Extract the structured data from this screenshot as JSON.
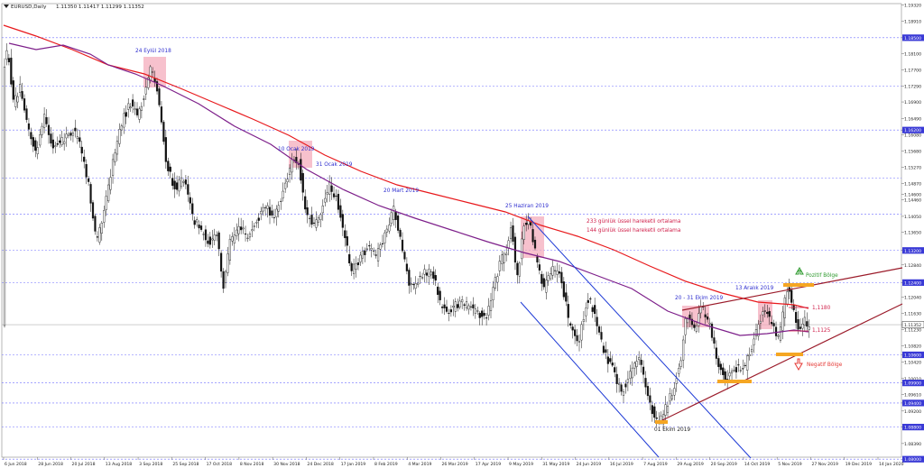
{
  "chart_data": {
    "type": "candlestick",
    "header": {
      "symbol": "EURUSD,Daily",
      "ohlc": "1.11350 1.11417 1.11299 1.11352"
    },
    "y_axis": {
      "range": [
        1.0805,
        1.1935
      ],
      "ticks": [
        "1.19320",
        "1.18910",
        "1.18500",
        "1.18100",
        "1.17700",
        "1.17290",
        "1.16900",
        "1.16490",
        "1.16200",
        "1.16080",
        "1.15680",
        "1.15270",
        "1.14870",
        "1.14600",
        "1.14460",
        "1.14050",
        "1.13650",
        "1.13200",
        "1.12840",
        "1.12400",
        "1.12040",
        "1.11630",
        "1.11352",
        "1.11230",
        "1.10820",
        "1.10600",
        "1.10420",
        "1.10010",
        "1.09900",
        "1.09610",
        "1.09400",
        "1.09200",
        "1.08800",
        "1.08390",
        "1.08000"
      ],
      "highlighted_levels": [
        "1.18500",
        "1.17300",
        "1.16200",
        "1.15000",
        "1.14100",
        "1.13200",
        "1.12400",
        "1.11352",
        "1.10600",
        "1.09900",
        "1.09400",
        "1.08800",
        "1.08000"
      ],
      "current_price": "1.11352"
    },
    "x_axis": {
      "ticks": [
        "6 Jun 2018",
        "28 Jun 2018",
        "20 Jul 2018",
        "13 Aug 2018",
        "3 Sep 2018",
        "25 Sep 2018",
        "17 Oct 2018",
        "8 Nov 2018",
        "30 Nov 2018",
        "24 Dec 2018",
        "17 Jan 2019",
        "8 Feb 2019",
        "4 Mar 2019",
        "26 Mar 2019",
        "17 Apr 2019",
        "9 May 2019",
        "31 May 2019",
        "24 Jun 2019",
        "16 Jul 2019",
        "7 Aug 2019",
        "29 Aug 2019",
        "20 Sep 2019",
        "14 Oct 2019",
        "5 Nov 2019",
        "27 Nov 2019",
        "19 Dec 2019",
        "14 Jan 2020"
      ]
    },
    "moving_averages": [
      {
        "name": "233 günlük üssel hareketli ortalama",
        "color": "#e8191c"
      },
      {
        "name": "144 günlük üssel hareketli ortalama",
        "color": "#7d1f8a"
      }
    ],
    "annotations": [
      "24 Eylül 2018",
      "10 Ocak 2019",
      "31 Ocak 2019",
      "20 Mart 2019",
      "25 Haziran 2019",
      "20 - 31 Ekim 2019",
      "13 Aralık 2019",
      "01 Ekim 2019",
      "1,1180",
      "1,1125",
      "Pozitif Bölge",
      "Negatif Bölge"
    ],
    "colors": {
      "candles": "#111111",
      "grid": "#6f6fff",
      "annotation_text": "#2e2ecf",
      "ma_text": "#d0204a",
      "highlight_box": "#f4a6b8",
      "support_bar": "#f5a623",
      "positive": "#2e9a2e",
      "negative": "#e53935",
      "channel": "#1f3bd6",
      "trend": "#9b1b2a"
    }
  }
}
